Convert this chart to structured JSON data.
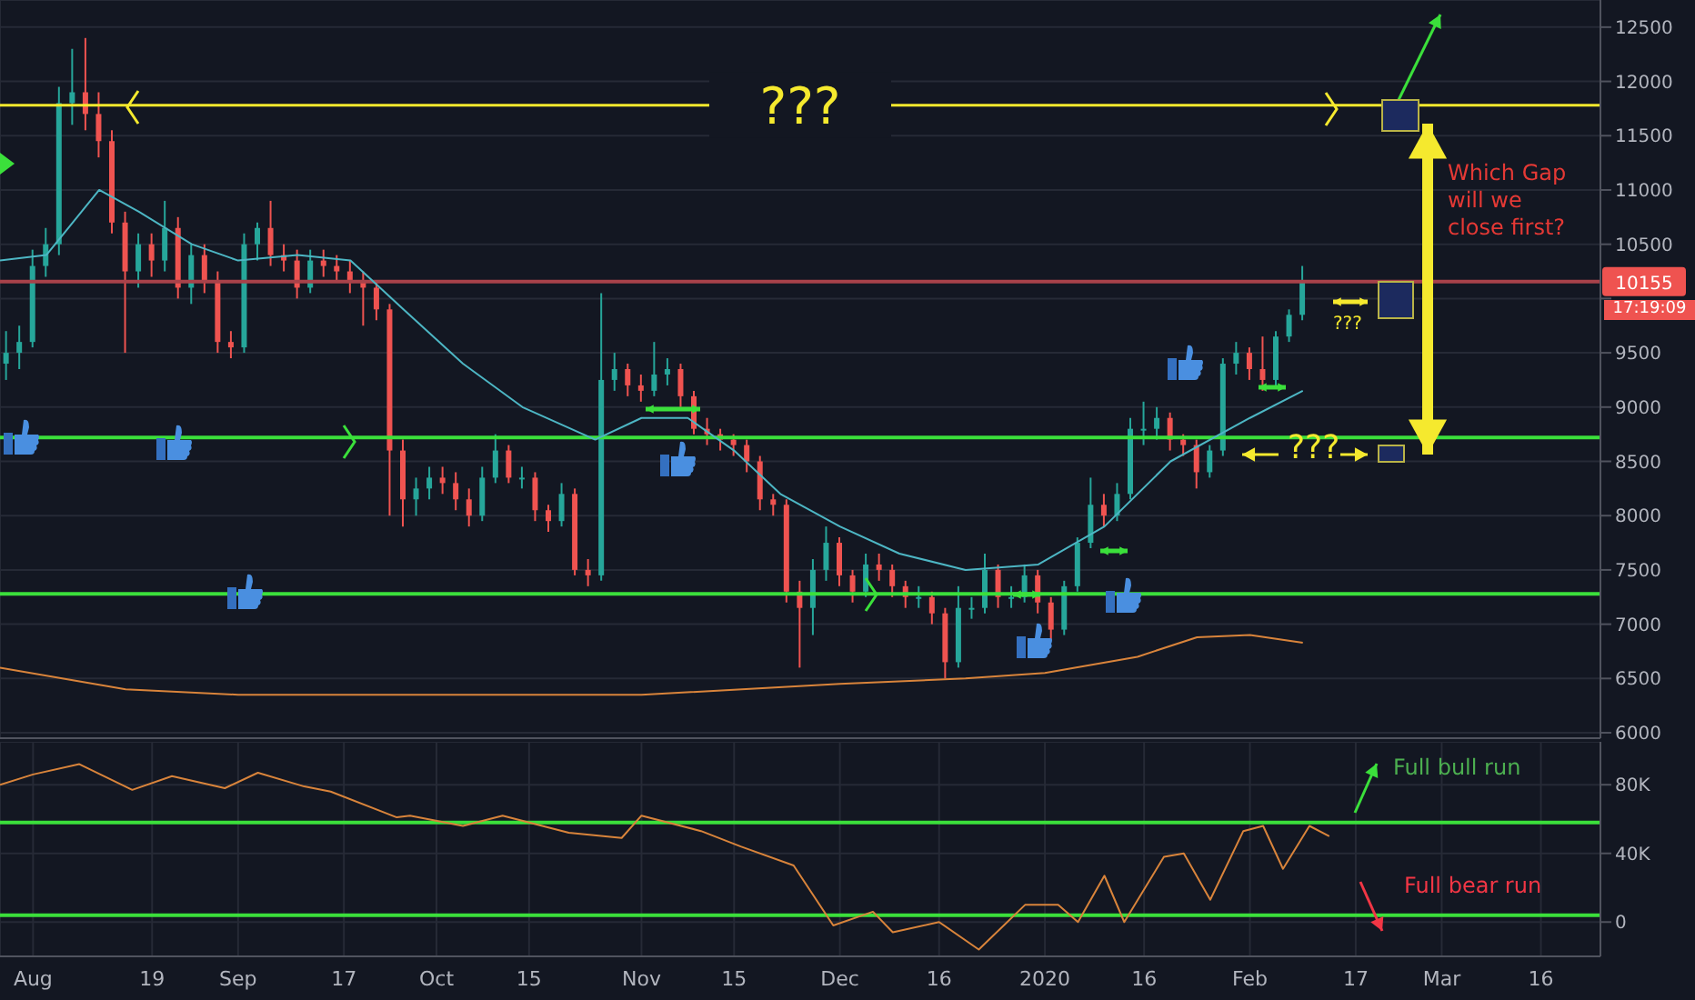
{
  "chart_data": [
    {
      "type": "candlestick",
      "tick_labels": "y",
      "grid": true,
      "x": [
        "2019-07-28",
        "2019-07-30",
        "2019-08-01",
        "2019-08-03",
        "2019-08-05",
        "2019-08-07",
        "2019-08-09",
        "2019-08-11",
        "2019-08-13",
        "2019-08-15",
        "2019-08-17",
        "2019-08-19",
        "2019-08-21",
        "2019-08-23",
        "2019-08-25",
        "2019-08-27",
        "2019-08-29",
        "2019-08-31",
        "2019-09-02",
        "2019-09-04",
        "2019-09-06",
        "2019-09-08",
        "2019-09-10",
        "2019-09-12",
        "2019-09-14",
        "2019-09-16",
        "2019-09-18",
        "2019-09-20",
        "2019-09-22",
        "2019-09-24",
        "2019-09-26",
        "2019-09-28",
        "2019-09-30",
        "2019-10-02",
        "2019-10-04",
        "2019-10-06",
        "2019-10-08",
        "2019-10-10",
        "2019-10-12",
        "2019-10-14",
        "2019-10-16",
        "2019-10-18",
        "2019-10-20",
        "2019-10-22",
        "2019-10-24",
        "2019-10-26",
        "2019-10-28",
        "2019-10-30",
        "2019-11-01",
        "2019-11-03",
        "2019-11-05",
        "2019-11-07",
        "2019-11-09",
        "2019-11-11",
        "2019-11-13",
        "2019-11-15",
        "2019-11-17",
        "2019-11-19",
        "2019-11-21",
        "2019-11-23",
        "2019-11-25",
        "2019-11-27",
        "2019-11-29",
        "2019-12-01",
        "2019-12-03",
        "2019-12-05",
        "2019-12-07",
        "2019-12-09",
        "2019-12-11",
        "2019-12-13",
        "2019-12-15",
        "2019-12-17",
        "2019-12-19",
        "2019-12-21",
        "2019-12-23",
        "2019-12-25",
        "2019-12-27",
        "2019-12-29",
        "2019-12-31",
        "2020-01-02",
        "2020-01-04",
        "2020-01-06",
        "2020-01-08",
        "2020-01-10",
        "2020-01-12",
        "2020-01-14",
        "2020-01-16",
        "2020-01-18",
        "2020-01-20",
        "2020-01-22",
        "2020-01-24",
        "2020-01-26",
        "2020-01-28",
        "2020-01-30",
        "2020-02-01",
        "2020-02-03",
        "2020-02-05",
        "2020-02-07",
        "2020-02-09"
      ],
      "ohlc": [
        [
          9400,
          9700,
          9250,
          9500
        ],
        [
          9500,
          9750,
          9350,
          9600
        ],
        [
          9600,
          10450,
          9550,
          10300
        ],
        [
          10300,
          10650,
          10200,
          10500
        ],
        [
          10500,
          11950,
          10400,
          11800
        ],
        [
          11800,
          12300,
          11600,
          11900
        ],
        [
          11900,
          12400,
          11550,
          11700
        ],
        [
          11700,
          11900,
          11300,
          11450
        ],
        [
          11450,
          11550,
          10600,
          10700
        ],
        [
          10700,
          10800,
          9500,
          10250
        ],
        [
          10250,
          10600,
          10100,
          10500
        ],
        [
          10500,
          10600,
          10200,
          10350
        ],
        [
          10350,
          10900,
          10250,
          10650
        ],
        [
          10650,
          10750,
          10000,
          10100
        ],
        [
          10100,
          10500,
          9950,
          10400
        ],
        [
          10400,
          10500,
          10050,
          10150
        ],
        [
          10150,
          10250,
          9500,
          9600
        ],
        [
          9600,
          9700,
          9450,
          9550
        ],
        [
          9550,
          10600,
          9500,
          10500
        ],
        [
          10500,
          10700,
          10350,
          10650
        ],
        [
          10650,
          10900,
          10300,
          10400
        ],
        [
          10400,
          10500,
          10250,
          10350
        ],
        [
          10350,
          10450,
          10000,
          10100
        ],
        [
          10100,
          10450,
          10050,
          10350
        ],
        [
          10350,
          10450,
          10200,
          10300
        ],
        [
          10300,
          10400,
          10150,
          10250
        ],
        [
          10250,
          10350,
          10050,
          10150
        ],
        [
          10150,
          10250,
          9750,
          10100
        ],
        [
          10100,
          10150,
          9800,
          9900
        ],
        [
          9900,
          9950,
          8000,
          8600
        ],
        [
          8600,
          8700,
          7900,
          8150
        ],
        [
          8150,
          8350,
          8000,
          8250
        ],
        [
          8250,
          8450,
          8150,
          8350
        ],
        [
          8350,
          8450,
          8200,
          8300
        ],
        [
          8300,
          8400,
          8050,
          8150
        ],
        [
          8150,
          8250,
          7900,
          8000
        ],
        [
          8000,
          8450,
          7950,
          8350
        ],
        [
          8350,
          8750,
          8300,
          8600
        ],
        [
          8600,
          8650,
          8300,
          8350
        ],
        [
          8350,
          8450,
          8250,
          8350
        ],
        [
          8350,
          8400,
          7950,
          8050
        ],
        [
          8050,
          8100,
          7850,
          7950
        ],
        [
          7950,
          8300,
          7900,
          8200
        ],
        [
          8200,
          8250,
          7450,
          7500
        ],
        [
          7500,
          7600,
          7350,
          7450
        ],
        [
          7450,
          10050,
          7400,
          9250
        ],
        [
          9250,
          9500,
          9150,
          9350
        ],
        [
          9350,
          9400,
          9100,
          9200
        ],
        [
          9200,
          9300,
          9050,
          9150
        ],
        [
          9150,
          9600,
          9100,
          9300
        ],
        [
          9300,
          9450,
          9200,
          9350
        ],
        [
          9350,
          9400,
          9000,
          9100
        ],
        [
          9100,
          9150,
          8750,
          8800
        ],
        [
          8800,
          8900,
          8650,
          8750
        ],
        [
          8750,
          8800,
          8600,
          8700
        ],
        [
          8700,
          8750,
          8550,
          8650
        ],
        [
          8650,
          8700,
          8400,
          8500
        ],
        [
          8500,
          8550,
          8050,
          8150
        ],
        [
          8150,
          8200,
          8000,
          8100
        ],
        [
          8100,
          8150,
          7200,
          7300
        ],
        [
          7300,
          7400,
          6600,
          7150
        ],
        [
          7150,
          7600,
          6900,
          7500
        ],
        [
          7500,
          7900,
          7400,
          7750
        ],
        [
          7750,
          7800,
          7350,
          7450
        ],
        [
          7450,
          7500,
          7200,
          7300
        ],
        [
          7300,
          7650,
          7250,
          7550
        ],
        [
          7550,
          7650,
          7400,
          7500
        ],
        [
          7500,
          7550,
          7250,
          7350
        ],
        [
          7350,
          7400,
          7150,
          7250
        ],
        [
          7250,
          7350,
          7150,
          7250
        ],
        [
          7250,
          7300,
          7000,
          7100
        ],
        [
          7100,
          7150,
          6500,
          6650
        ],
        [
          6650,
          7350,
          6600,
          7150
        ],
        [
          7150,
          7250,
          7050,
          7150
        ],
        [
          7150,
          7650,
          7100,
          7500
        ],
        [
          7500,
          7550,
          7150,
          7250
        ],
        [
          7250,
          7350,
          7150,
          7250
        ],
        [
          7250,
          7550,
          7200,
          7450
        ],
        [
          7450,
          7500,
          7100,
          7200
        ],
        [
          7200,
          7250,
          6850,
          6950
        ],
        [
          6950,
          7400,
          6900,
          7350
        ],
        [
          7350,
          7800,
          7300,
          7750
        ],
        [
          7750,
          8350,
          7700,
          8100
        ],
        [
          8100,
          8200,
          7900,
          8000
        ],
        [
          8000,
          8300,
          7950,
          8200
        ],
        [
          8200,
          8900,
          8150,
          8800
        ],
        [
          8800,
          9050,
          8650,
          8800
        ],
        [
          8800,
          9000,
          8700,
          8900
        ],
        [
          8900,
          8950,
          8600,
          8700
        ],
        [
          8700,
          8750,
          8550,
          8650
        ],
        [
          8650,
          8700,
          8250,
          8400
        ],
        [
          8400,
          8650,
          8350,
          8600
        ],
        [
          8600,
          9450,
          8550,
          9400
        ],
        [
          9400,
          9600,
          9300,
          9500
        ],
        [
          9500,
          9550,
          9250,
          9350
        ],
        [
          9350,
          9650,
          9150,
          9250
        ],
        [
          9250,
          9700,
          9200,
          9650
        ],
        [
          9650,
          9900,
          9600,
          9850
        ],
        [
          9850,
          10300,
          9800,
          10155
        ]
      ],
      "series": [
        {
          "type": "line",
          "color": "#4db6c4",
          "x": [
            "2019-07-27",
            "2019-08-03",
            "2019-08-11",
            "2019-08-17",
            "2019-08-25",
            "2019-09-01",
            "2019-09-10",
            "2019-09-18",
            "2019-09-26",
            "2019-10-05",
            "2019-10-14",
            "2019-10-25",
            "2019-11-01",
            "2019-11-08",
            "2019-11-15",
            "2019-11-22",
            "2019-12-01",
            "2019-12-10",
            "2019-12-20",
            "2019-12-31",
            "2020-01-10",
            "2020-01-20",
            "2020-02-01",
            "2020-02-09"
          ],
          "values": [
            10350,
            10400,
            11000,
            10800,
            10500,
            10350,
            10400,
            10350,
            9900,
            9400,
            9000,
            8700,
            8900,
            8900,
            8600,
            8200,
            7900,
            7650,
            7500,
            7550,
            7900,
            8500,
            8900,
            9150
          ]
        },
        {
          "type": "line",
          "color": "#d9843b",
          "x": [
            "2019-07-27",
            "2019-08-15",
            "2019-09-01",
            "2019-10-01",
            "2019-11-01",
            "2019-12-01",
            "2019-12-20",
            "2020-01-01",
            "2020-01-15",
            "2020-01-24",
            "2020-02-01",
            "2020-02-09"
          ],
          "values": [
            6600,
            6400,
            6350,
            6350,
            6350,
            6450,
            6500,
            6550,
            6700,
            6880,
            6900,
            6830
          ]
        }
      ],
      "xlim": [
        "2019-07-27",
        "2020-03-25"
      ],
      "xticks": [
        {
          "value": "2019-08-01",
          "label": null
        },
        {
          "value": "2019-08-19",
          "label": null
        },
        {
          "value": "2019-09-01",
          "label": null
        },
        {
          "value": "2019-09-17",
          "label": null
        },
        {
          "value": "2019-10-01",
          "label": null
        },
        {
          "value": "2019-10-15",
          "label": null
        },
        {
          "value": "2019-11-01",
          "label": null
        },
        {
          "value": "2019-11-15",
          "label": null
        },
        {
          "value": "2019-12-01",
          "label": null
        },
        {
          "value": "2019-12-16",
          "label": null
        },
        {
          "value": "2020-01-01",
          "label": null
        },
        {
          "value": "2020-01-16",
          "label": null
        },
        {
          "value": "2020-02-01",
          "label": null
        },
        {
          "value": "2020-02-17",
          "label": null
        },
        {
          "value": "2020-03-01",
          "label": null
        },
        {
          "value": "2020-03-16",
          "label": null
        }
      ],
      "ylim": [
        5950,
        12750
      ],
      "yticks": [
        6000,
        6500,
        7000,
        7500,
        8000,
        8500,
        9000,
        9500,
        {
          "value": 10000,
          "label": null
        },
        10500,
        11000,
        11500,
        12000,
        12500
      ],
      "ref_lines": [
        {
          "axis": "y",
          "value": 11780,
          "label": "???",
          "color": "#f5e92e"
        },
        {
          "axis": "y",
          "value": 10155,
          "label": "10155",
          "color": "#a8424a"
        },
        {
          "axis": "y",
          "value": 8720,
          "color": "#3be03b"
        },
        {
          "axis": "y",
          "value": 7280,
          "color": "#3be03b"
        }
      ],
      "annotations": [
        "???",
        "???",
        "Which Gap will we close first?",
        "17:19:09"
      ]
    },
    {
      "type": "line",
      "color": "#d9843b",
      "grid": true,
      "x": [
        "2019-07-27",
        "2019-08-01",
        "2019-08-08",
        "2019-08-16",
        "2019-08-22",
        "2019-08-30",
        "2019-09-04",
        "2019-09-11",
        "2019-09-15",
        "2019-09-25",
        "2019-09-27",
        "2019-10-05",
        "2019-10-11",
        "2019-10-21",
        "2019-10-29",
        "2019-11-01",
        "2019-11-10",
        "2019-11-16",
        "2019-11-24",
        "2019-11-30",
        "2019-12-06",
        "2019-12-09",
        "2019-12-16",
        "2019-12-22",
        "2019-12-29",
        "2020-01-03",
        "2020-01-06",
        "2020-01-10",
        "2020-01-13",
        "2020-01-19",
        "2020-01-22",
        "2020-01-26",
        "2020-01-31",
        "2020-02-03",
        "2020-02-06",
        "2020-02-10",
        "2020-02-13"
      ],
      "values": [
        80000,
        86000,
        92000,
        77000,
        85000,
        78000,
        87000,
        79000,
        76000,
        61000,
        62000,
        56000,
        62000,
        52000,
        49000,
        62000,
        53000,
        44000,
        33000,
        -2000,
        6000,
        -6000,
        0,
        -16000,
        10000,
        10000,
        0,
        27000,
        0,
        38000,
        40000,
        13000,
        53000,
        56000,
        31000,
        56000,
        50000
      ],
      "xlim": [
        "2019-07-27",
        "2020-03-25"
      ],
      "xticks": [
        {
          "value": "2019-08-01",
          "label": "Aug"
        },
        {
          "value": "2019-08-19",
          "label": "19"
        },
        {
          "value": "2019-09-01",
          "label": "Sep"
        },
        {
          "value": "2019-09-17",
          "label": "17"
        },
        {
          "value": "2019-10-01",
          "label": "Oct"
        },
        {
          "value": "2019-10-15",
          "label": "15"
        },
        {
          "value": "2019-11-01",
          "label": "Nov"
        },
        {
          "value": "2019-11-15",
          "label": "15"
        },
        {
          "value": "2019-12-01",
          "label": "Dec"
        },
        {
          "value": "2019-12-16",
          "label": "16"
        },
        {
          "value": "2020-01-01",
          "label": "2020"
        },
        {
          "value": "2020-01-16",
          "label": "16"
        },
        {
          "value": "2020-02-01",
          "label": "Feb"
        },
        {
          "value": "2020-02-17",
          "label": "17"
        },
        {
          "value": "2020-03-01",
          "label": "Mar"
        },
        {
          "value": "2020-03-16",
          "label": "16"
        }
      ],
      "ylim": [
        -20000,
        105000
      ],
      "yticks": [
        0,
        {
          "value": 40000,
          "label": "40K"
        },
        {
          "value": 80000,
          "label": "80K"
        }
      ],
      "ref_lines": [
        {
          "axis": "y",
          "value": 58000,
          "color": "#3be03b"
        },
        {
          "axis": "y",
          "value": 4000,
          "color": "#3be03b"
        }
      ],
      "annotations": [
        "Full bull run",
        "Full bear run"
      ]
    }
  ]
}
